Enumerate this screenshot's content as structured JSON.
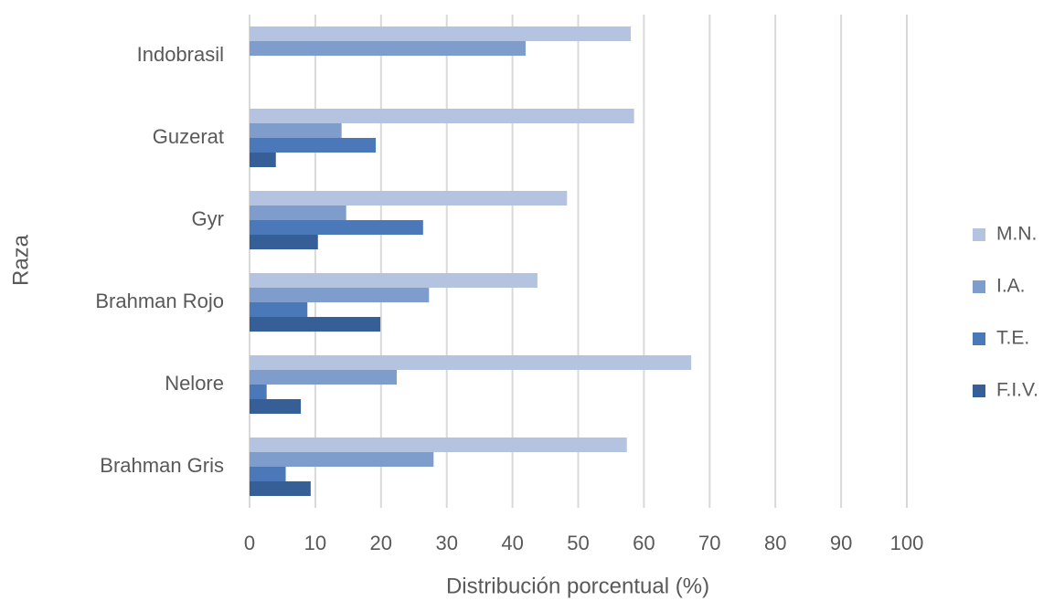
{
  "chart_data": {
    "type": "bar",
    "orientation": "horizontal",
    "x_label": "Distribución porcentual (%)",
    "y_label": "Raza",
    "categories": [
      "Indobrasil",
      "Guzerat",
      "Gyr",
      "Brahman Rojo",
      "Nelore",
      "Brahman Gris"
    ],
    "series": [
      {
        "name": "M.N.",
        "color": "#b4c3e0",
        "values": [
          58,
          58.5,
          48.3,
          43.8,
          67.2,
          57.4
        ]
      },
      {
        "name": "I.A.",
        "color": "#7f9dcc",
        "values": [
          42,
          14,
          14.7,
          27.3,
          22.4,
          28
        ]
      },
      {
        "name": "T.E.",
        "color": "#4a78b8",
        "values": [
          0,
          19.2,
          26.4,
          8.8,
          2.6,
          5.5
        ]
      },
      {
        "name": "F.I.V.",
        "color": "#355f96",
        "values": [
          0,
          4,
          10.4,
          19.9,
          7.8,
          9.3
        ]
      }
    ],
    "xlim": [
      0,
      100
    ],
    "xticks": [
      0,
      10,
      20,
      30,
      40,
      50,
      60,
      70,
      80,
      90,
      100
    ],
    "grid": true,
    "legend": "right"
  }
}
